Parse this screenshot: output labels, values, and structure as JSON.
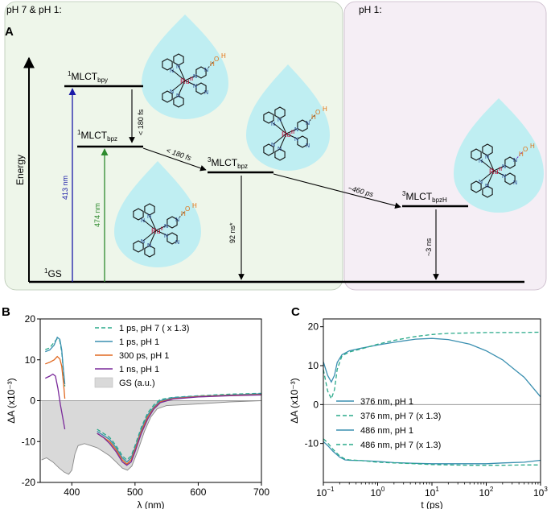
{
  "figure": {
    "panel_a": {
      "letter": "A",
      "region_left": "pH 7 & pH 1:",
      "region_right": "pH 1:",
      "energy_label": "Energy",
      "states": {
        "gs": {
          "sup": "1",
          "base": "GS",
          "sub": ""
        },
        "mlct_bpy": {
          "sup": "1",
          "base": "MLCT",
          "sub": "bpy"
        },
        "mlct_bpz1": {
          "sup": "1",
          "base": "MLCT",
          "sub": "bpz"
        },
        "mlct_bpz3": {
          "sup": "3",
          "base": "MLCT",
          "sub": "bpz"
        },
        "mlct_bpzh": {
          "sup": "3",
          "base": "MLCT",
          "sub": "bpzH"
        }
      },
      "transitions": {
        "excite_413": "413 nm",
        "excite_474": "474 nm",
        "t_bpy_bpz": "< 180 fs",
        "isc": "< 180 fs",
        "pt": "~460 ps",
        "decay_92": "92 ns*",
        "decay_3": "~3 ns"
      },
      "colors": {
        "left_bg": "#eef6ea",
        "right_bg": "#f5eef5",
        "drop": "#bfeef2",
        "ex413": "#1a1aa8",
        "ex474": "#2e8b2e",
        "ru": "#c0143c",
        "water": "#e07010",
        "bond": "#1f3d8a",
        "hbond": "#7a2fd0"
      },
      "molecules": {
        "ru_ii": "Ru",
        "ru_ii_ox": "II",
        "ru_iii": "Ru",
        "ru_iii_ox": "III",
        "atoms": {
          "n": "N",
          "o": "O",
          "h": "H"
        }
      }
    },
    "panel_b": {
      "letter": "B"
    },
    "panel_c": {
      "letter": "C"
    }
  },
  "chart_data": [
    {
      "type": "line",
      "panel": "B",
      "xlabel": "λ (nm)",
      "ylabel": "ΔA (x10⁻³)",
      "xlim": [
        350,
        700
      ],
      "ylim": [
        -20,
        20
      ],
      "xticks": [
        "400",
        "500",
        "600",
        "700"
      ],
      "yticks": [
        "20",
        "10",
        "0",
        "-10",
        "-20"
      ],
      "zero_line": true,
      "legend_position": "top-center",
      "series": [
        {
          "name": "1 ps, pH 7 ( x 1.3)",
          "color": "#2aaa8a",
          "dash": true,
          "segments": [
            [
              [
                358,
                12.5
              ],
              [
                365,
                12.9
              ],
              [
                372,
                14.3
              ],
              [
                377,
                15.2
              ],
              [
                381,
                14.6
              ],
              [
                384,
                12.0
              ],
              [
                387,
                6.5
              ],
              [
                389,
                3.5
              ]
            ],
            [
              [
                440,
                -7.0
              ],
              [
                450,
                -8.0
              ],
              [
                460,
                -9.0
              ],
              [
                470,
                -11.0
              ],
              [
                480,
                -13.5
              ],
              [
                487,
                -14.5
              ],
              [
                494,
                -13.5
              ],
              [
                500,
                -11.0
              ],
              [
                510,
                -6.5
              ],
              [
                520,
                -3.0
              ],
              [
                530,
                -1.0
              ],
              [
                540,
                0.3
              ],
              [
                560,
                0.8
              ],
              [
                600,
                1.2
              ],
              [
                650,
                1.6
              ],
              [
                700,
                1.8
              ]
            ]
          ]
        },
        {
          "name": "1 ps, pH 1",
          "color": "#3a8fb0",
          "dash": false,
          "segments": [
            [
              [
                358,
                12.0
              ],
              [
                365,
                12.4
              ],
              [
                372,
                13.6
              ],
              [
                377,
                15.5
              ],
              [
                381,
                15.0
              ],
              [
                384,
                12.5
              ],
              [
                387,
                7.0
              ],
              [
                389,
                4.0
              ]
            ],
            [
              [
                440,
                -7.5
              ],
              [
                450,
                -8.5
              ],
              [
                460,
                -9.5
              ],
              [
                470,
                -11.5
              ],
              [
                480,
                -14.0
              ],
              [
                487,
                -15.0
              ],
              [
                494,
                -14.0
              ],
              [
                500,
                -11.5
              ],
              [
                510,
                -7.0
              ],
              [
                520,
                -3.5
              ],
              [
                530,
                -1.5
              ],
              [
                540,
                0.0
              ],
              [
                560,
                0.7
              ],
              [
                600,
                1.1
              ],
              [
                650,
                1.4
              ],
              [
                700,
                1.7
              ]
            ]
          ]
        },
        {
          "name": "300 ps, pH 1",
          "color": "#e06820",
          "dash": false,
          "segments": [
            [
              [
                358,
                9.0
              ],
              [
                365,
                9.4
              ],
              [
                372,
                10.0
              ],
              [
                377,
                10.8
              ],
              [
                381,
                10.2
              ],
              [
                384,
                8.5
              ],
              [
                387,
                4.0
              ],
              [
                389,
                0.5
              ]
            ],
            [
              [
                440,
                -8.0
              ],
              [
                450,
                -9.0
              ],
              [
                460,
                -10.0
              ],
              [
                470,
                -12.0
              ],
              [
                480,
                -14.5
              ],
              [
                487,
                -15.5
              ],
              [
                494,
                -14.5
              ],
              [
                500,
                -12.0
              ],
              [
                510,
                -7.5
              ],
              [
                520,
                -4.0
              ],
              [
                530,
                -1.8
              ],
              [
                540,
                -0.3
              ],
              [
                560,
                0.5
              ],
              [
                600,
                1.0
              ],
              [
                650,
                1.3
              ],
              [
                700,
                1.5
              ]
            ]
          ]
        },
        {
          "name": "1 ns, pH 1",
          "color": "#7a2a9a",
          "dash": false,
          "segments": [
            [
              [
                358,
                5.5
              ],
              [
                365,
                6.0
              ],
              [
                370,
                6.5
              ],
              [
                374,
                6.0
              ],
              [
                378,
                3.0
              ],
              [
                382,
                -1.0
              ],
              [
                386,
                -4.5
              ],
              [
                389,
                -7.0
              ]
            ],
            [
              [
                440,
                -8.0
              ],
              [
                450,
                -9.0
              ],
              [
                460,
                -10.5
              ],
              [
                470,
                -12.5
              ],
              [
                480,
                -15.0
              ],
              [
                487,
                -15.8
              ],
              [
                494,
                -15.0
              ],
              [
                500,
                -12.5
              ],
              [
                510,
                -8.0
              ],
              [
                520,
                -4.5
              ],
              [
                530,
                -2.0
              ],
              [
                540,
                -0.5
              ],
              [
                560,
                0.4
              ],
              [
                600,
                0.9
              ],
              [
                650,
                1.2
              ],
              [
                700,
                1.4
              ]
            ]
          ]
        }
      ],
      "ground_state": {
        "name": "GS (a.u.)",
        "fill": "#d9d9d9",
        "line": "#888888",
        "points": [
          [
            352,
            -14.5
          ],
          [
            360,
            -14.0
          ],
          [
            370,
            -15.0
          ],
          [
            380,
            -16.5
          ],
          [
            388,
            -17.5
          ],
          [
            395,
            -18.0
          ],
          [
            400,
            -17.0
          ],
          [
            405,
            -13.0
          ],
          [
            410,
            -11.0
          ],
          [
            420,
            -10.5
          ],
          [
            430,
            -11.0
          ],
          [
            440,
            -11.5
          ],
          [
            450,
            -12.5
          ],
          [
            460,
            -13.5
          ],
          [
            470,
            -15.0
          ],
          [
            480,
            -16.5
          ],
          [
            488,
            -17.0
          ],
          [
            495,
            -16.0
          ],
          [
            505,
            -12.0
          ],
          [
            515,
            -7.5
          ],
          [
            525,
            -4.0
          ],
          [
            535,
            -2.0
          ],
          [
            550,
            -1.2
          ],
          [
            575,
            -1.0
          ],
          [
            600,
            -0.8
          ],
          [
            650,
            -0.3
          ],
          [
            700,
            0.0
          ]
        ]
      }
    },
    {
      "type": "line",
      "panel": "C",
      "xlabel": "t (ps)",
      "ylabel": "ΔA (x10⁻³)",
      "x_scale": "log",
      "xlim": [
        0.1,
        1000
      ],
      "ylim": [
        -20,
        22
      ],
      "xticks": [
        {
          "base": "10",
          "exp": "−1"
        },
        {
          "base": "10",
          "exp": "0"
        },
        {
          "base": "10",
          "exp": "1"
        },
        {
          "base": "10",
          "exp": "2"
        },
        {
          "base": "10",
          "exp": "3"
        }
      ],
      "yticks": [
        "20",
        "10",
        "0",
        "-10"
      ],
      "zero_line": true,
      "legend_position": "center",
      "series": [
        {
          "name": "376 nm, pH 1",
          "color": "#3a8fb0",
          "dash": false,
          "points": [
            [
              0.1,
              11.0
            ],
            [
              0.12,
              7.5
            ],
            [
              0.14,
              5.8
            ],
            [
              0.16,
              7.5
            ],
            [
              0.18,
              10.8
            ],
            [
              0.22,
              12.8
            ],
            [
              0.3,
              13.8
            ],
            [
              0.5,
              14.5
            ],
            [
              1,
              15.3
            ],
            [
              2,
              16.0
            ],
            [
              5,
              16.8
            ],
            [
              10,
              17.0
            ],
            [
              20,
              16.7
            ],
            [
              50,
              15.5
            ],
            [
              100,
              13.8
            ],
            [
              200,
              11.5
            ],
            [
              500,
              7.0
            ],
            [
              1000,
              2.0
            ]
          ]
        },
        {
          "name": "376 nm, pH 7 (x 1.3)",
          "color": "#2aaa8a",
          "dash": true,
          "points": [
            [
              0.1,
              9.0
            ],
            [
              0.12,
              3.5
            ],
            [
              0.14,
              1.5
            ],
            [
              0.16,
              3.8
            ],
            [
              0.18,
              9.0
            ],
            [
              0.22,
              12.5
            ],
            [
              0.3,
              13.5
            ],
            [
              0.5,
              14.3
            ],
            [
              1,
              15.5
            ],
            [
              2,
              16.5
            ],
            [
              5,
              17.5
            ],
            [
              10,
              18.0
            ],
            [
              20,
              18.3
            ],
            [
              50,
              18.4
            ],
            [
              100,
              18.5
            ],
            [
              200,
              18.5
            ],
            [
              500,
              18.5
            ],
            [
              1000,
              18.6
            ]
          ]
        },
        {
          "name": "486 nm, pH 1",
          "color": "#3a8fb0",
          "dash": false,
          "points": [
            [
              0.1,
              -9.5
            ],
            [
              0.12,
              -10.5
            ],
            [
              0.15,
              -12.0
            ],
            [
              0.2,
              -13.5
            ],
            [
              0.25,
              -14.2
            ],
            [
              0.3,
              -14.3
            ],
            [
              0.5,
              -14.4
            ],
            [
              1,
              -14.6
            ],
            [
              2,
              -14.9
            ],
            [
              5,
              -15.1
            ],
            [
              10,
              -15.2
            ],
            [
              20,
              -15.2
            ],
            [
              50,
              -15.2
            ],
            [
              100,
              -15.2
            ],
            [
              200,
              -15.0
            ],
            [
              500,
              -14.8
            ],
            [
              1000,
              -14.3
            ]
          ]
        },
        {
          "name": "486 nm, pH 7 (x 1.3)",
          "color": "#2aaa8a",
          "dash": true,
          "points": [
            [
              0.1,
              -8.8
            ],
            [
              0.12,
              -9.8
            ],
            [
              0.15,
              -11.5
            ],
            [
              0.2,
              -13.2
            ],
            [
              0.25,
              -14.0
            ],
            [
              0.3,
              -14.2
            ],
            [
              0.5,
              -14.4
            ],
            [
              1,
              -14.8
            ],
            [
              2,
              -15.0
            ],
            [
              5,
              -15.2
            ],
            [
              10,
              -15.4
            ],
            [
              20,
              -15.5
            ],
            [
              50,
              -15.6
            ],
            [
              100,
              -15.6
            ],
            [
              200,
              -15.6
            ],
            [
              500,
              -15.5
            ],
            [
              1000,
              -15.5
            ]
          ]
        }
      ]
    }
  ]
}
